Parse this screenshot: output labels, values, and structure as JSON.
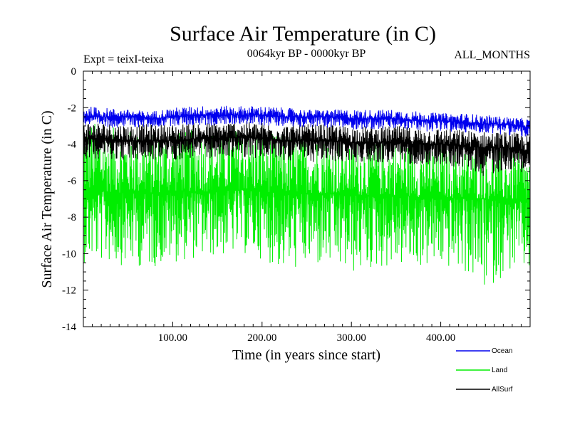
{
  "chart_data": {
    "type": "line",
    "title": "Surface Air Temperature (in C)",
    "subtitle": "0064kyr BP - 0000kyr BP",
    "experiment_label": "Expt = teixI-teixa",
    "months_label": "ALL_MONTHS",
    "xlabel": "Time (in years since start)",
    "ylabel": "Surface Air Temperature (in C)",
    "xlim": [
      0,
      500
    ],
    "ylim": [
      -14,
      0
    ],
    "x_ticks": [
      100,
      200,
      300,
      400
    ],
    "x_tick_labels": [
      "100.00",
      "200.00",
      "300.00",
      "400.00"
    ],
    "y_ticks": [
      0,
      -2,
      -4,
      -6,
      -8,
      -10,
      -12,
      -14
    ],
    "y_tick_labels": [
      "0",
      "-2",
      "-4",
      "-6",
      "-8",
      "-10",
      "-12",
      "-14"
    ],
    "grid": false,
    "legend_position": "bottom-right",
    "series": [
      {
        "name": "Land",
        "color": "#00ee00",
        "x": [
          0,
          25,
          50,
          75,
          100,
          125,
          150,
          175,
          200,
          225,
          250,
          275,
          300,
          325,
          350,
          375,
          400,
          425,
          450,
          475,
          500
        ],
        "mean": [
          -6.6,
          -6.6,
          -6.7,
          -6.7,
          -6.6,
          -6.6,
          -6.6,
          -6.5,
          -6.6,
          -6.7,
          -6.7,
          -6.7,
          -6.8,
          -6.8,
          -6.8,
          -6.9,
          -6.9,
          -7.0,
          -7.0,
          -7.1,
          -7.2
        ],
        "max": [
          -2.5,
          -3.0,
          -3.2,
          -3.4,
          -3.3,
          -3.2,
          -3.2,
          -3.1,
          -3.3,
          -3.5,
          -3.5,
          -3.6,
          -3.7,
          -3.8,
          -3.8,
          -3.9,
          -4.0,
          -4.1,
          -4.3,
          -4.3,
          -4.5
        ],
        "min": [
          -10.5,
          -10.5,
          -10.7,
          -10.8,
          -10.5,
          -10.3,
          -10.2,
          -10.0,
          -10.3,
          -11.0,
          -10.8,
          -10.8,
          -11.2,
          -10.9,
          -10.7,
          -10.8,
          -10.8,
          -11.0,
          -12.1,
          -11.0,
          -11.1
        ]
      },
      {
        "name": "AllSurf",
        "color": "#000000",
        "x": [
          0,
          25,
          50,
          75,
          100,
          125,
          150,
          175,
          200,
          225,
          250,
          275,
          300,
          325,
          350,
          375,
          400,
          425,
          450,
          475,
          500
        ],
        "mean": [
          -3.7,
          -3.7,
          -3.8,
          -3.8,
          -3.8,
          -3.7,
          -3.7,
          -3.6,
          -3.7,
          -3.8,
          -3.8,
          -3.8,
          -3.9,
          -3.9,
          -3.9,
          -4.0,
          -4.0,
          -4.1,
          -4.2,
          -4.2,
          -4.4
        ],
        "max": [
          -2.7,
          -2.8,
          -2.9,
          -2.9,
          -2.9,
          -2.8,
          -2.8,
          -2.7,
          -2.8,
          -2.9,
          -2.9,
          -2.9,
          -3.0,
          -3.0,
          -3.0,
          -3.1,
          -3.1,
          -3.2,
          -3.3,
          -3.3,
          -3.5
        ],
        "min": [
          -4.8,
          -4.8,
          -4.9,
          -4.9,
          -4.9,
          -4.8,
          -4.8,
          -4.7,
          -4.8,
          -4.9,
          -5.0,
          -5.0,
          -5.0,
          -5.0,
          -5.1,
          -5.1,
          -5.2,
          -5.3,
          -5.8,
          -5.4,
          -5.6
        ]
      },
      {
        "name": "Ocean",
        "color": "#0000ee",
        "x": [
          0,
          25,
          50,
          75,
          100,
          125,
          150,
          175,
          200,
          225,
          250,
          275,
          300,
          325,
          350,
          375,
          400,
          425,
          450,
          475,
          500
        ],
        "mean": [
          -2.5,
          -2.5,
          -2.5,
          -2.6,
          -2.5,
          -2.4,
          -2.4,
          -2.4,
          -2.4,
          -2.5,
          -2.5,
          -2.5,
          -2.6,
          -2.6,
          -2.6,
          -2.7,
          -2.7,
          -2.8,
          -2.9,
          -2.9,
          -3.1
        ],
        "max": [
          -1.9,
          -2.0,
          -2.1,
          -2.2,
          -2.0,
          -1.9,
          -1.9,
          -1.9,
          -1.9,
          -2.0,
          -2.1,
          -2.1,
          -2.1,
          -2.1,
          -2.1,
          -2.2,
          -2.3,
          -2.3,
          -2.4,
          -2.5,
          -2.6
        ],
        "min": [
          -3.0,
          -3.1,
          -3.1,
          -3.1,
          -3.0,
          -3.0,
          -3.0,
          -2.9,
          -3.0,
          -3.0,
          -3.1,
          -3.1,
          -3.2,
          -3.2,
          -3.2,
          -3.3,
          -3.3,
          -3.4,
          -3.4,
          -3.5,
          -3.7
        ]
      }
    ],
    "legend": [
      {
        "label": "Ocean",
        "color": "#0000ee"
      },
      {
        "label": "Land",
        "color": "#00ee00"
      },
      {
        "label": "AllSurf",
        "color": "#000000"
      }
    ]
  }
}
